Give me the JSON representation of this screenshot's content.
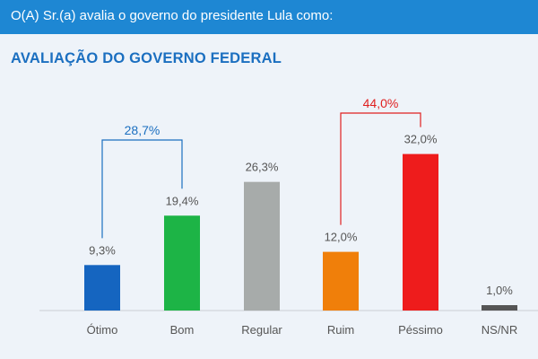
{
  "header": {
    "question": "O(A) Sr.(a) avalia o governo do presidente Lula como:"
  },
  "colors": {
    "header_bg": "#1e87d3",
    "title": "#1b6fc0",
    "positive_bracket": "#1b6fc0",
    "negative_bracket": "#e02020"
  },
  "chart_data": {
    "type": "bar",
    "title": "AVALIAÇÃO DO GOVERNO FEDERAL",
    "categories": [
      "Ótimo",
      "Bom",
      "Regular",
      "Ruim",
      "Péssimo",
      "NS/NR"
    ],
    "values": [
      9.3,
      19.4,
      26.3,
      12.0,
      32.0,
      1.0
    ],
    "value_labels": [
      "9,3%",
      "19,4%",
      "26,3%",
      "12,0%",
      "32,0%",
      "1,0%"
    ],
    "colors": [
      "#1565c0",
      "#1db446",
      "#a7abaa",
      "#f07f0a",
      "#ee1c1c",
      "#555555"
    ],
    "ylim": [
      0,
      40
    ],
    "grid": false,
    "groups": [
      {
        "label": "28,7%",
        "from": 0,
        "to": 1,
        "color": "#1b6fc0"
      },
      {
        "label": "44,0%",
        "from": 3,
        "to": 4,
        "color": "#e02020"
      }
    ]
  }
}
